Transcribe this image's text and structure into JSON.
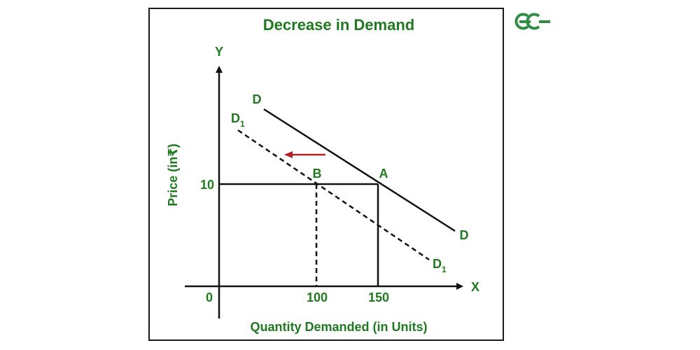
{
  "title": "Decrease in Demand",
  "logo": {
    "name": "GeeksforGeeks",
    "text": "GG",
    "color": "#2f8d46"
  },
  "colors": {
    "text": "#1f7a1f",
    "lines": "#111111",
    "arrow": "#b22222"
  },
  "axes": {
    "x_name": "X",
    "y_name": "Y",
    "x_title": "Quantity Demanded (in Units)",
    "y_title": "Price (in₹)",
    "origin": "0"
  },
  "ticks": {
    "price": "10",
    "qty_b": "100",
    "qty_a": "150"
  },
  "curves": {
    "original": {
      "label": "D",
      "style": "solid"
    },
    "shifted": {
      "label": "D",
      "subscript": "1",
      "style": "dashed"
    }
  },
  "points": {
    "a": {
      "label": "A",
      "quantity": 150,
      "price": 10
    },
    "b": {
      "label": "B",
      "quantity": 100,
      "price": 10
    }
  },
  "shift_direction": "left"
}
